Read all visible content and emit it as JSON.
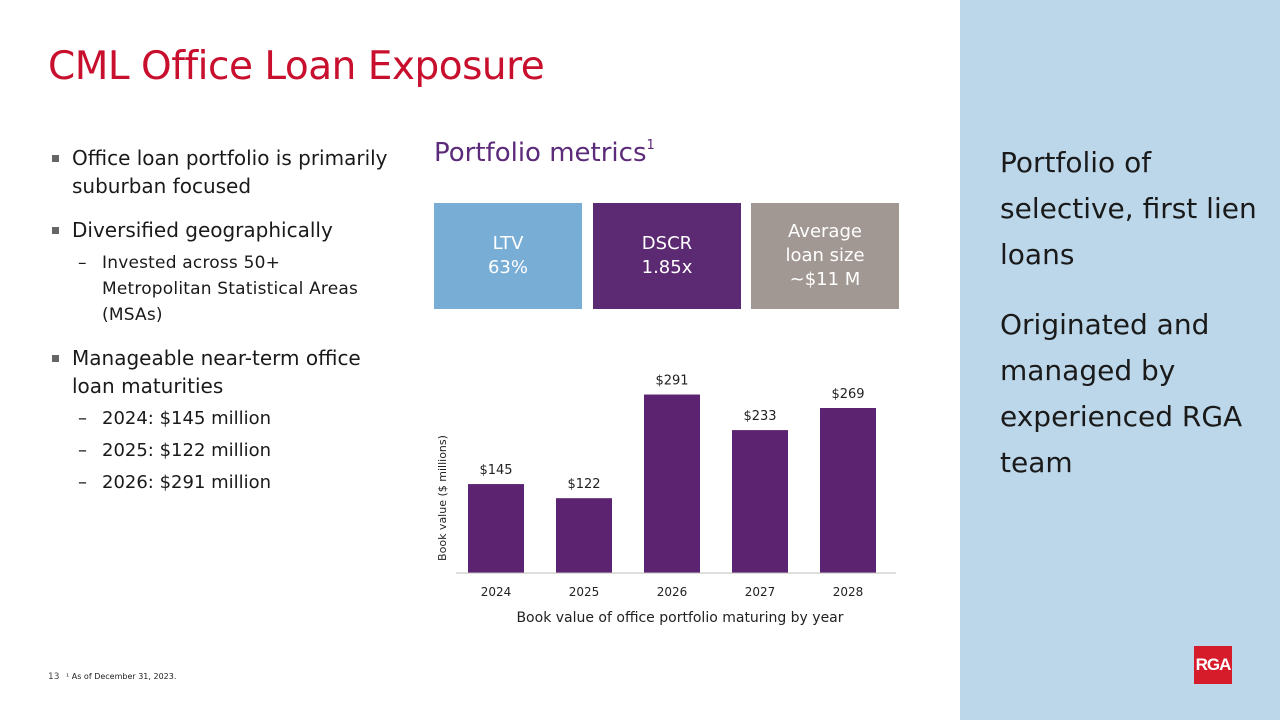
{
  "title": "CML Office Loan Exposure",
  "bullets": {
    "b1": "Office loan portfolio is primarily suburban focused",
    "b2": "Diversified geographically",
    "b2_sub": "Invested across 50+ Metropolitan Statistical Areas (MSAs)",
    "b3": "Manageable near-term office loan maturities",
    "b3_subs": [
      "2024: $145 million",
      "2025: $122 million",
      "2026: $291 million"
    ]
  },
  "metrics": {
    "title": "Portfolio metrics",
    "footnote_mark": "1",
    "ltv_label": "LTV",
    "ltv_value": "63%",
    "dscr_label": "DSCR",
    "dscr_value": "1.85x",
    "avg_label": "Average loan size",
    "avg_value": "~$11 M",
    "colors": {
      "ltv": "#78aed6",
      "dscr": "#5c2a72",
      "avg": "#a29893"
    }
  },
  "chart_data": {
    "type": "bar",
    "categories": [
      "2024",
      "2025",
      "2026",
      "2027",
      "2028"
    ],
    "values": [
      145,
      122,
      291,
      233,
      269
    ],
    "data_labels": [
      "$145",
      "$122",
      "$291",
      "$233",
      "$269"
    ],
    "title": "",
    "xlabel": "Book value of office portfolio maturing by year",
    "ylabel": "Book value ($ millions)",
    "ylim": [
      0,
      300
    ],
    "grid": false,
    "bar_color": "#5c2370"
  },
  "right_panel": {
    "text1": "Portfolio of selective, first lien loans",
    "text2": "Originated and managed by experienced RGA team",
    "logo": "RGA"
  },
  "footer": {
    "page": "13",
    "note": "¹ As of December 31, 2023."
  }
}
